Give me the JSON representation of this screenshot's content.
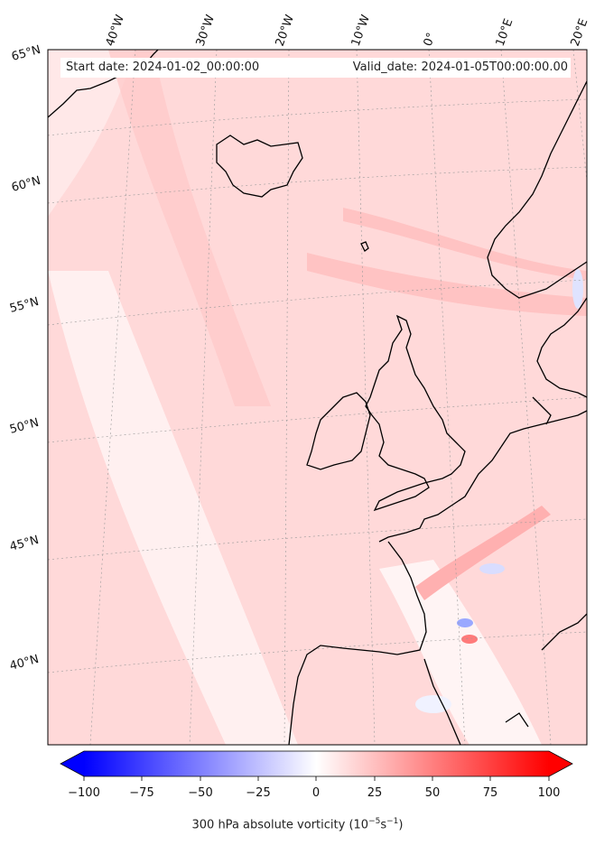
{
  "header": {
    "start_date": "Start date: 2024-01-02_00:00:00",
    "valid_date": "Valid_date: 2024-01-05T00:00:00.00"
  },
  "map": {
    "variable_label_main": "300 hPa absolute vorticity (10",
    "variable_label_exp1": "−5",
    "variable_label_mid": "s",
    "variable_label_exp2": "−1",
    "variable_label_end": ")",
    "longitude_labels": [
      "40°W",
      "30°W",
      "20°W",
      "10°W",
      "0°",
      "10°E",
      "20°E"
    ],
    "latitude_labels": [
      "65°N",
      "60°N",
      "55°N",
      "50°N",
      "45°N",
      "40°N"
    ],
    "colors": {
      "negative_max": "#0000ff",
      "zero": "#ffffff",
      "positive_max": "#ff0000",
      "background_field": "#ffe0e0",
      "coastline": "#000000"
    }
  },
  "colorbar": {
    "min": -100,
    "max": 100,
    "tick_labels": [
      "−100",
      "−75",
      "−50",
      "−25",
      "0",
      "25",
      "50",
      "75",
      "100"
    ],
    "extend": "both"
  }
}
